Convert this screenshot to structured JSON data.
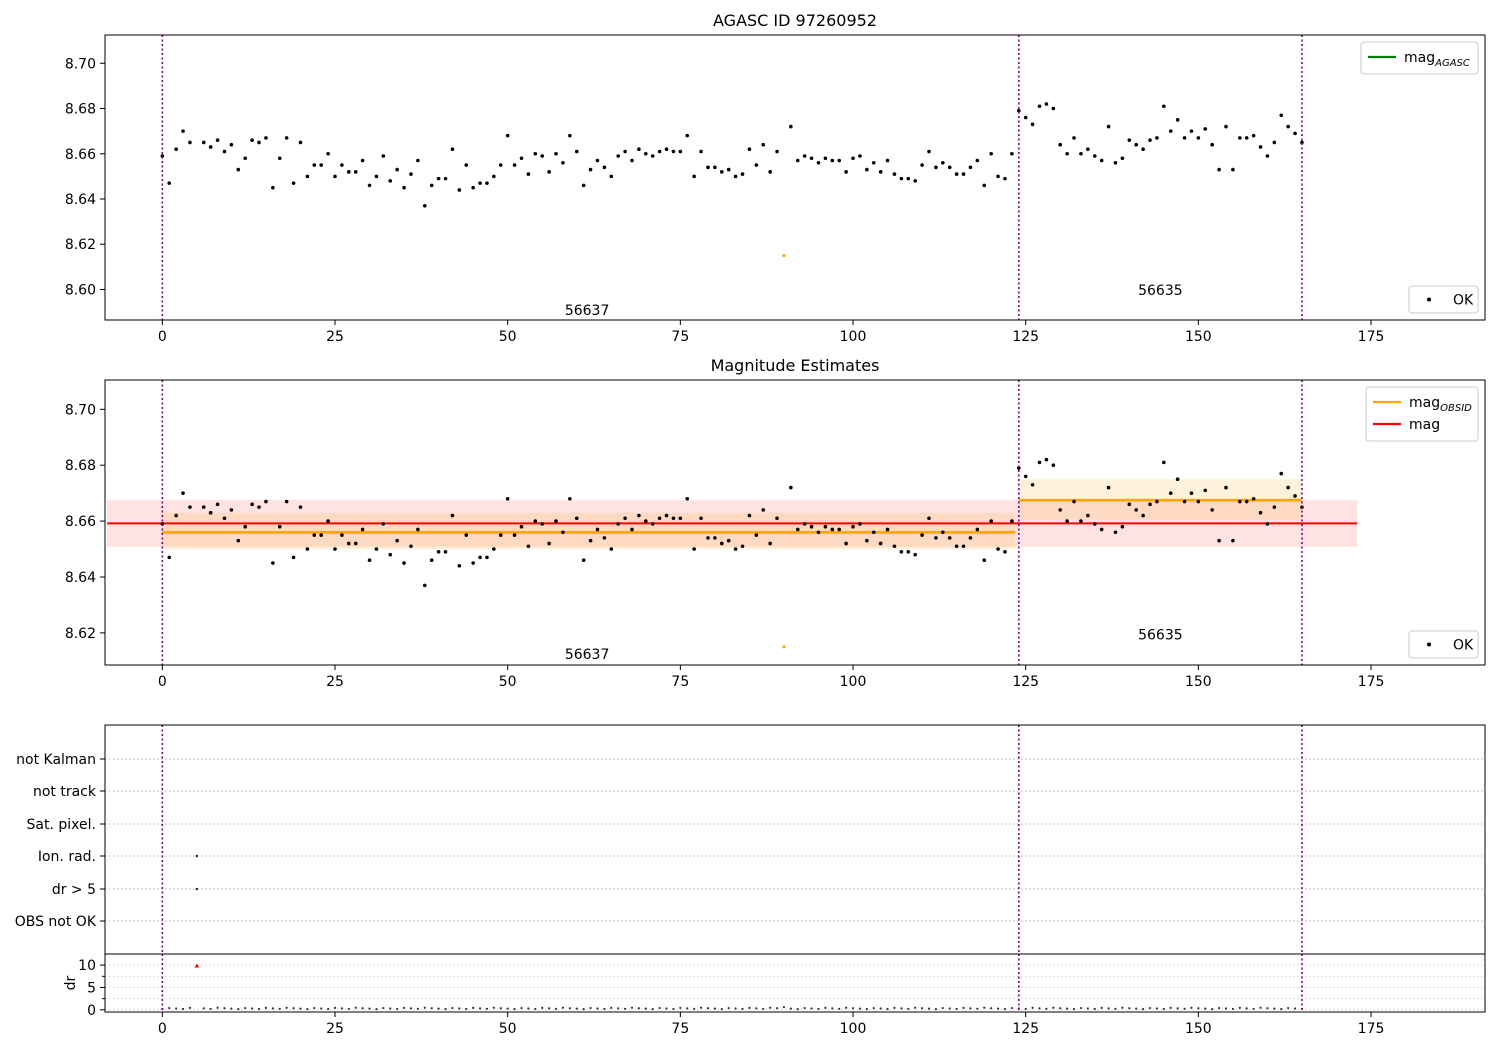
{
  "chart_data": [
    {
      "type": "scatter",
      "title": "AGASC ID 97260952",
      "xlabel": "",
      "ylabel": "",
      "xlim": [
        -8.3,
        191.5
      ],
      "ylim": [
        8.5865,
        8.7125
      ],
      "xticks": [
        0,
        25,
        50,
        75,
        100,
        125,
        150,
        175
      ],
      "xtick_labels": [
        "0",
        "25",
        "50",
        "75",
        "100",
        "125",
        "150",
        "175"
      ],
      "yticks": [
        8.6,
        8.62,
        8.64,
        8.66,
        8.68,
        8.7
      ],
      "ytick_labels": [
        "8.60",
        "8.62",
        "8.64",
        "8.66",
        "8.68",
        "8.70"
      ],
      "grid": false,
      "obsid_boundaries": [
        0,
        124,
        165
      ],
      "obsid_labels": [
        {
          "text": "56637",
          "x": 61.5,
          "y": 8.591
        },
        {
          "text": "56635",
          "x": 144.5,
          "y": 8.5998
        }
      ],
      "legend_upper": {
        "placement": "top-right",
        "entries": [
          {
            "label": "mag",
            "subscript": "AGASC",
            "color": "#008000",
            "marker": "line"
          }
        ]
      },
      "legend_lower": {
        "placement": "bottom-right",
        "entries": [
          {
            "label": "OK",
            "color": "#000000",
            "marker": "dot"
          }
        ]
      },
      "series": [
        {
          "name": "OK",
          "color": "#000000",
          "x": [
            0,
            1,
            2,
            3,
            4,
            6,
            7,
            8,
            9,
            10,
            11,
            12,
            13,
            14,
            15,
            16,
            17,
            18,
            19,
            20,
            21,
            22,
            23,
            24,
            25,
            26,
            27,
            28,
            29,
            30,
            31,
            32,
            33,
            34,
            35,
            36,
            37,
            38,
            39,
            40,
            41,
            42,
            43,
            44,
            45,
            46,
            47,
            48,
            49,
            50,
            51,
            52,
            53,
            54,
            55,
            56,
            57,
            58,
            59,
            60,
            61,
            62,
            63,
            64,
            65,
            66,
            67,
            68,
            69,
            70,
            71,
            72,
            73,
            74,
            75,
            76,
            77,
            78,
            79,
            80,
            81,
            82,
            83,
            84,
            85,
            86,
            87,
            88,
            89,
            91,
            92,
            93,
            94,
            95,
            96,
            97,
            98,
            99,
            100,
            101,
            102,
            103,
            104,
            105,
            106,
            107,
            108,
            109,
            110,
            111,
            112,
            113,
            114,
            115,
            116,
            117,
            118,
            119,
            120,
            121,
            122,
            123,
            124,
            125,
            126,
            127,
            128,
            129,
            130,
            131,
            132,
            133,
            134,
            135,
            136,
            137,
            138,
            139,
            140,
            141,
            142,
            143,
            144,
            145,
            146,
            147,
            148,
            149,
            150,
            151,
            152,
            153,
            154,
            155,
            156,
            157,
            158,
            159,
            160,
            161,
            162,
            163,
            164,
            165
          ],
          "y": [
            8.659,
            8.647,
            8.662,
            8.67,
            8.665,
            8.665,
            8.663,
            8.666,
            8.661,
            8.664,
            8.653,
            8.658,
            8.666,
            8.665,
            8.667,
            8.645,
            8.658,
            8.667,
            8.647,
            8.665,
            8.65,
            8.655,
            8.655,
            8.66,
            8.65,
            8.655,
            8.652,
            8.652,
            8.657,
            8.646,
            8.65,
            8.659,
            8.648,
            8.653,
            8.645,
            8.651,
            8.657,
            8.637,
            8.646,
            8.649,
            8.649,
            8.662,
            8.644,
            8.655,
            8.645,
            8.647,
            8.647,
            8.65,
            8.655,
            8.668,
            8.655,
            8.658,
            8.651,
            8.66,
            8.659,
            8.652,
            8.66,
            8.656,
            8.668,
            8.661,
            8.646,
            8.653,
            8.657,
            8.654,
            8.65,
            8.659,
            8.661,
            8.657,
            8.662,
            8.66,
            8.659,
            8.661,
            8.662,
            8.661,
            8.661,
            8.668,
            8.65,
            8.661,
            8.654,
            8.654,
            8.652,
            8.653,
            8.65,
            8.651,
            8.662,
            8.655,
            8.664,
            8.652,
            8.661,
            8.672,
            8.657,
            8.659,
            8.658,
            8.656,
            8.658,
            8.657,
            8.657,
            8.652,
            8.658,
            8.659,
            8.653,
            8.656,
            8.652,
            8.657,
            8.651,
            8.649,
            8.649,
            8.648,
            8.655,
            8.661,
            8.654,
            8.656,
            8.654,
            8.651,
            8.651,
            8.654,
            8.657,
            8.646,
            8.66,
            8.65,
            8.649,
            8.66,
            8.679,
            8.676,
            8.673,
            8.681,
            8.682,
            8.68,
            8.664,
            8.66,
            8.667,
            8.66,
            8.662,
            8.659,
            8.657,
            8.672,
            8.656,
            8.658,
            8.666,
            8.664,
            8.662,
            8.666,
            8.667,
            8.681,
            8.67,
            8.675,
            8.667,
            8.67,
            8.667,
            8.671,
            8.664,
            8.653,
            8.672,
            8.653,
            8.667,
            8.667,
            8.668,
            8.663,
            8.659,
            8.665,
            8.677,
            8.672,
            8.669,
            8.665
          ]
        },
        {
          "name": "",
          "color": "#ffa500",
          "x": [
            90
          ],
          "y": [
            8.615
          ]
        }
      ]
    },
    {
      "type": "scatter",
      "title": "Magnitude Estimates",
      "xlabel": "",
      "ylabel": "",
      "xlim": [
        -8.3,
        191.5
      ],
      "ylim": [
        8.6085,
        8.7105
      ],
      "xticks": [
        0,
        25,
        50,
        75,
        100,
        125,
        150,
        175
      ],
      "xtick_labels": [
        "0",
        "25",
        "50",
        "75",
        "100",
        "125",
        "150",
        "175"
      ],
      "yticks": [
        8.62,
        8.64,
        8.66,
        8.68,
        8.7
      ],
      "ytick_labels": [
        "8.62",
        "8.64",
        "8.66",
        "8.68",
        "8.70"
      ],
      "grid": false,
      "obsid_boundaries": [
        0,
        124,
        165
      ],
      "obsid_labels": [
        {
          "text": "56637",
          "x": 61.5,
          "y": 8.6125
        },
        {
          "text": "56635",
          "x": 144.5,
          "y": 8.6195
        }
      ],
      "legend_upper": {
        "placement": "top-right",
        "entries": [
          {
            "label": "mag",
            "subscript": "OBSID",
            "color": "#ffa500",
            "marker": "line"
          },
          {
            "label": "mag",
            "subscript": "",
            "color": "#ff0000",
            "marker": "line"
          }
        ]
      },
      "legend_lower": {
        "placement": "bottom-right",
        "entries": [
          {
            "label": "OK",
            "color": "#000000",
            "marker": "dot"
          }
        ]
      },
      "mag_line": {
        "value": 8.6592,
        "low": 8.6508,
        "high": 8.6676,
        "x_range": [
          -8,
          173
        ],
        "color": "#ff0000"
      },
      "obsid_mag_segments": [
        {
          "x_range": [
            0,
            123.5
          ],
          "value": 8.656,
          "low": 8.65,
          "high": 8.663,
          "color": "#ffa500"
        },
        {
          "x_range": [
            124,
            165
          ],
          "value": 8.6675,
          "low": 8.6605,
          "high": 8.675,
          "color": "#ffa500"
        }
      ],
      "series": "same as chart_data[0].series"
    },
    {
      "type": "scatter",
      "title": "",
      "xlabel": "",
      "ylabel": "",
      "xlim": [
        -8.3,
        191.5
      ],
      "xticks": [
        0,
        25,
        50,
        75,
        100,
        125,
        150,
        175
      ],
      "xtick_labels": [
        "0",
        "25",
        "50",
        "75",
        "100",
        "125",
        "150",
        "175"
      ],
      "flag_categories": [
        "OBS not OK",
        "dr > 5",
        "Ion. rad.",
        "Sat. pixel.",
        "not track",
        "not Kalman"
      ],
      "flag_points": [
        {
          "category": "Ion. rad.",
          "x": 5
        },
        {
          "category": "dr > 5",
          "x": 5
        }
      ],
      "obsid_boundaries": [
        0,
        124,
        165
      ]
    },
    {
      "type": "scatter",
      "title": "",
      "xlabel": "",
      "ylabel": "dr",
      "xlim": [
        -8.3,
        191.5
      ],
      "ylim": [
        -0.5,
        12.5
      ],
      "yticks": [
        0,
        5,
        10
      ],
      "ytick_labels": [
        "0",
        "5",
        "10"
      ],
      "grid": true,
      "dr_outlier": {
        "x": 5,
        "y": 9.8,
        "color": "#ff0000"
      },
      "dr_values_note": "",
      "obsid_boundaries": [
        0,
        124,
        165
      ]
    }
  ]
}
